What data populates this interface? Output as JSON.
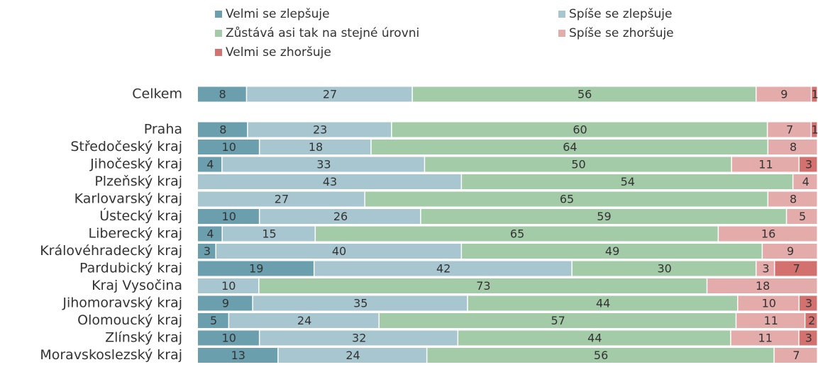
{
  "chart_data": {
    "type": "stacked-bar-100",
    "categories": [
      "Celkem",
      "Praha",
      "Středočeský kraj",
      "Jihočeský kraj",
      "Plzeňský kraj",
      "Karlovarský kraj",
      "Ústecký kraj",
      "Liberecký kraj",
      "Královéhradecký kraj",
      "Pardubický kraj",
      "Kraj Vysočina",
      "Jihomoravský kraj",
      "Olomoucký kraj",
      "Zlínský kraj",
      "Moravskoslezský kraj"
    ],
    "series": [
      {
        "name": "Velmi se zlepšuje",
        "color": "#6b9fad",
        "values": [
          8,
          8,
          10,
          4,
          null,
          null,
          10,
          4,
          3,
          19,
          null,
          9,
          5,
          10,
          13
        ]
      },
      {
        "name": "Spíše se zlepšuje",
        "color": "#a7c6cf",
        "values": [
          27,
          23,
          18,
          33,
          43,
          27,
          26,
          15,
          40,
          42,
          10,
          35,
          24,
          32,
          24
        ]
      },
      {
        "name": "Zůstává asi tak na stejné úrovni",
        "color": "#a3cba8",
        "values": [
          56,
          60,
          64,
          50,
          54,
          65,
          59,
          65,
          49,
          30,
          73,
          44,
          57,
          44,
          56
        ]
      },
      {
        "name": "Spíše se zhoršuje",
        "color": "#e4abab",
        "values": [
          9,
          7,
          8,
          11,
          4,
          8,
          5,
          16,
          9,
          3,
          18,
          10,
          11,
          11,
          7
        ]
      },
      {
        "name": "Velmi se zhoršuje",
        "color": "#d3716f",
        "values": [
          1,
          1,
          null,
          3,
          null,
          null,
          null,
          null,
          null,
          7,
          null,
          3,
          2,
          3,
          null
        ]
      }
    ]
  }
}
